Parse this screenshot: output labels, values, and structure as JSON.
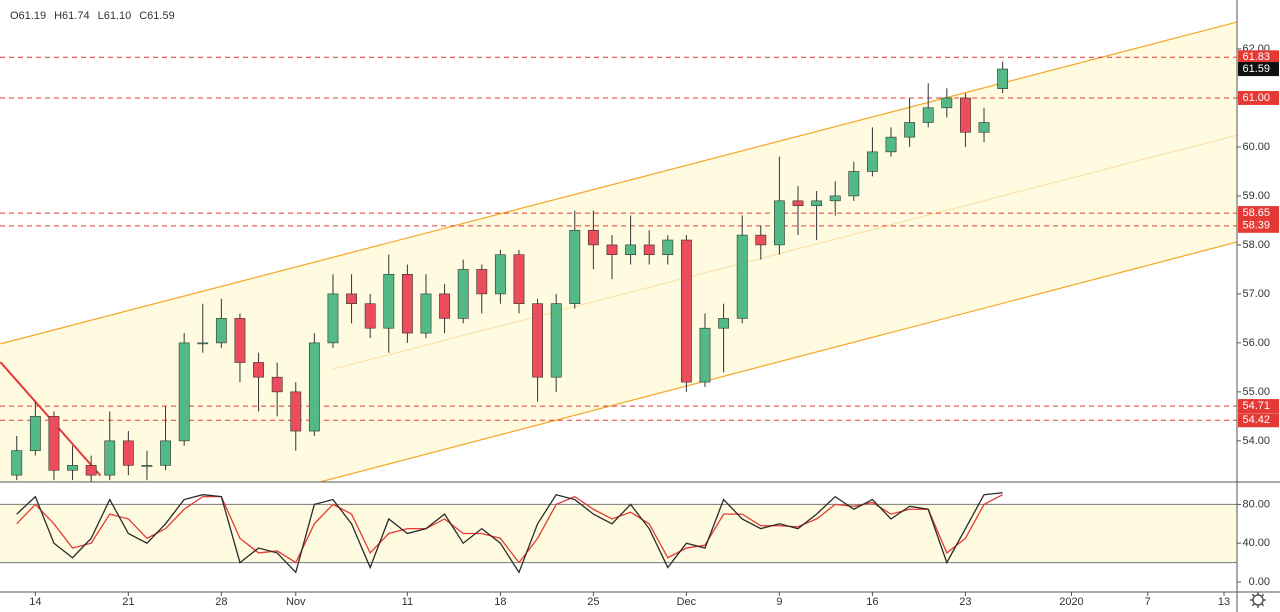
{
  "chart_data": [
    {
      "type": "candlestick",
      "legend_text": [
        "O61.19",
        "H61.74",
        "L61.10",
        "C61.59"
      ],
      "x": [
        -1,
        0,
        1,
        2,
        3,
        4,
        5,
        6,
        7,
        8,
        9,
        10,
        11,
        12,
        13,
        14,
        15,
        16,
        17,
        18,
        19,
        20,
        21,
        22,
        23,
        24,
        25,
        26,
        27,
        28,
        29,
        30,
        31,
        32,
        33,
        34,
        35,
        36,
        37,
        38,
        39,
        40,
        41,
        42,
        43,
        44,
        45,
        46,
        47,
        48,
        49,
        50,
        51,
        52
      ],
      "open": [
        53.3,
        53.8,
        54.5,
        53.4,
        53.5,
        53.3,
        54.0,
        53.5,
        53.5,
        54.0,
        56.0,
        56.0,
        56.5,
        55.6,
        55.3,
        55.0,
        54.2,
        56.0,
        57.0,
        56.8,
        56.3,
        57.4,
        56.2,
        57.0,
        56.5,
        57.5,
        57.0,
        57.8,
        56.8,
        55.3,
        56.8,
        58.3,
        58.0,
        57.8,
        58.0,
        57.8,
        58.1,
        55.2,
        56.3,
        56.5,
        58.2,
        58.0,
        58.9,
        58.8,
        58.9,
        59.0,
        59.5,
        59.9,
        60.2,
        60.5,
        60.8,
        61.0,
        60.3,
        61.19
      ],
      "high": [
        54.1,
        54.8,
        54.6,
        53.9,
        53.7,
        54.6,
        54.2,
        53.8,
        54.7,
        56.2,
        56.8,
        56.9,
        56.6,
        55.8,
        55.6,
        55.2,
        56.2,
        57.4,
        57.4,
        57.0,
        57.8,
        57.6,
        57.4,
        57.2,
        57.7,
        57.6,
        57.9,
        57.9,
        56.9,
        57.0,
        58.7,
        58.7,
        58.2,
        58.6,
        58.3,
        58.2,
        58.2,
        56.6,
        56.8,
        58.6,
        58.4,
        59.8,
        59.2,
        59.1,
        59.3,
        59.7,
        60.4,
        60.4,
        61.0,
        61.3,
        61.2,
        61.1,
        60.8,
        61.74
      ],
      "low": [
        53.2,
        53.7,
        53.2,
        53.2,
        53.1,
        53.2,
        53.3,
        53.2,
        53.4,
        53.9,
        55.8,
        55.9,
        55.2,
        54.6,
        54.5,
        53.8,
        54.1,
        55.9,
        56.4,
        56.1,
        55.8,
        56.0,
        56.1,
        56.2,
        56.4,
        56.6,
        56.8,
        56.6,
        54.8,
        55.0,
        56.7,
        57.5,
        57.3,
        57.6,
        57.6,
        57.6,
        55.0,
        55.1,
        55.4,
        56.4,
        57.7,
        57.8,
        58.2,
        58.1,
        58.6,
        58.9,
        59.4,
        59.8,
        60.0,
        60.4,
        60.6,
        60.0,
        60.1,
        61.1
      ],
      "close": [
        53.8,
        54.5,
        53.4,
        53.5,
        53.3,
        54.0,
        53.5,
        53.5,
        54.0,
        56.0,
        56.0,
        56.5,
        55.6,
        55.3,
        55.0,
        54.2,
        56.0,
        57.0,
        56.8,
        56.3,
        57.4,
        56.2,
        57.0,
        56.5,
        57.5,
        57.0,
        57.8,
        56.8,
        55.3,
        56.8,
        58.3,
        58.0,
        57.8,
        58.0,
        57.8,
        58.1,
        55.2,
        56.3,
        56.5,
        58.2,
        58.0,
        58.9,
        58.8,
        58.9,
        59.0,
        59.5,
        59.9,
        60.2,
        60.5,
        60.8,
        61.0,
        60.3,
        60.5,
        61.59
      ],
      "up_color": "#53b987",
      "down_color": "#eb4d5c",
      "xlim": [
        -1.9,
        64.6
      ],
      "xticks": [
        {
          "value": 0,
          "label": "14"
        },
        {
          "value": 5,
          "label": "21"
        },
        {
          "value": 10,
          "label": "28"
        },
        {
          "value": 14,
          "label": "Nov"
        },
        {
          "value": 20,
          "label": "11"
        },
        {
          "value": 25,
          "label": "18"
        },
        {
          "value": 30,
          "label": "25"
        },
        {
          "value": 35,
          "label": "Dec"
        },
        {
          "value": 40,
          "label": "9"
        },
        {
          "value": 45,
          "label": "16"
        },
        {
          "value": 50,
          "label": "23"
        },
        {
          "value": 55.7,
          "label": "2020"
        },
        {
          "value": 59.8,
          "label": "7"
        },
        {
          "value": 63.9,
          "label": "13"
        }
      ],
      "ylim": [
        53.16,
        63.0
      ],
      "yticks": [
        {
          "value": 54,
          "label": "54.00"
        },
        {
          "value": 55,
          "label": "55.00"
        },
        {
          "value": 56,
          "label": "56.00"
        },
        {
          "value": 57,
          "label": "57.00"
        },
        {
          "value": 58,
          "label": "58.00"
        },
        {
          "value": 59,
          "label": "59.00"
        },
        {
          "value": 60,
          "label": "60.00"
        },
        {
          "value": 61,
          "label": "61.00"
        },
        {
          "value": 62,
          "label": "62.00"
        }
      ],
      "levels": [
        61.83,
        {
          "value": 61,
          "label": "61.00"
        },
        58.65,
        58.39,
        54.71,
        54.42
      ],
      "level_color": "#e53935",
      "channel_color": "#f5a623",
      "channel_fill": "#fffbe0",
      "channel": {
        "upper": {
          "x": [
            -1.88,
            64.6
          ],
          "y": [
            55.98,
            62.55
          ]
        },
        "lower": {
          "x": [
            15.3,
            64.6
          ],
          "y": [
            53.16,
            58.06
          ]
        },
        "middle": {
          "x": [
            15.86,
            64.6
          ],
          "y": [
            55.45,
            60.24
          ]
        }
      },
      "trend_line": {
        "color": "#e53935",
        "x": [
          -1.88,
          3.5
        ],
        "y": [
          55.61,
          53.29
        ]
      }
    },
    {
      "type": "line",
      "x": [
        -1,
        0,
        1,
        2,
        3,
        4,
        5,
        6,
        7,
        8,
        9,
        10,
        11,
        12,
        13,
        14,
        15,
        16,
        17,
        18,
        19,
        20,
        21,
        22,
        23,
        24,
        25,
        26,
        27,
        28,
        29,
        30,
        31,
        32,
        33,
        34,
        35,
        36,
        37,
        38,
        39,
        40,
        41,
        42,
        43,
        44,
        45,
        46,
        47,
        48,
        49,
        50,
        51,
        52
      ],
      "series": [
        {
          "color": "#2b2b2b",
          "values": [
            70,
            88,
            40,
            25,
            45,
            85,
            50,
            40,
            60,
            85,
            90,
            88,
            20,
            35,
            30,
            10,
            80,
            85,
            60,
            15,
            65,
            50,
            55,
            70,
            40,
            55,
            40,
            10,
            60,
            90,
            85,
            70,
            60,
            80,
            55,
            15,
            40,
            35,
            85,
            65,
            55,
            60,
            55,
            70,
            88,
            75,
            85,
            65,
            78,
            75,
            20,
            55,
            90,
            92
          ]
        },
        {
          "color": "#e53935",
          "values": [
            60,
            80,
            60,
            35,
            40,
            70,
            65,
            45,
            55,
            75,
            88,
            88,
            45,
            30,
            32,
            20,
            60,
            80,
            70,
            30,
            50,
            55,
            55,
            65,
            50,
            50,
            45,
            20,
            45,
            80,
            88,
            75,
            65,
            72,
            60,
            25,
            35,
            38,
            70,
            70,
            58,
            58,
            57,
            65,
            80,
            78,
            82,
            70,
            75,
            75,
            30,
            45,
            80,
            90
          ]
        }
      ],
      "bands": [
        20,
        80
      ],
      "band_fill": "#fffbe0",
      "ylim": [
        -10.3,
        103.1
      ],
      "yticks": [
        {
          "value": 0,
          "label": "0.00"
        },
        {
          "value": 40,
          "label": "40.00"
        },
        {
          "value": 80,
          "label": "80.00"
        }
      ]
    }
  ]
}
